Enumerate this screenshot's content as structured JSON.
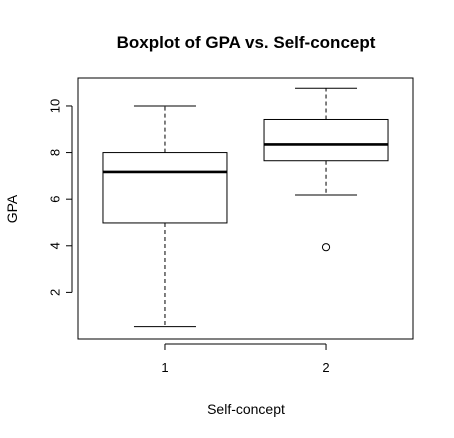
{
  "chart_data": {
    "type": "boxplot",
    "title": "Boxplot of GPA vs. Self-concept",
    "xlabel": "Self-concept",
    "ylabel": "GPA",
    "categories": [
      "1",
      "2"
    ],
    "ylim": [
      0.0,
      11.2
    ],
    "yticks": [
      2,
      4,
      6,
      8,
      10
    ],
    "grid": false,
    "legend": "none",
    "boxes": [
      {
        "category": "1",
        "whisker_low": 0.53,
        "q1": 4.98,
        "median": 7.17,
        "q3": 8.0,
        "whisker_high": 10.0,
        "outliers": []
      },
      {
        "category": "2",
        "whisker_low": 6.18,
        "q1": 7.65,
        "median": 8.35,
        "q3": 9.42,
        "whisker_high": 10.76,
        "outliers": [
          3.94
        ]
      }
    ]
  },
  "colors": {
    "box_fill": "#ffffff",
    "stroke": "#000000",
    "background": "#ffffff"
  }
}
